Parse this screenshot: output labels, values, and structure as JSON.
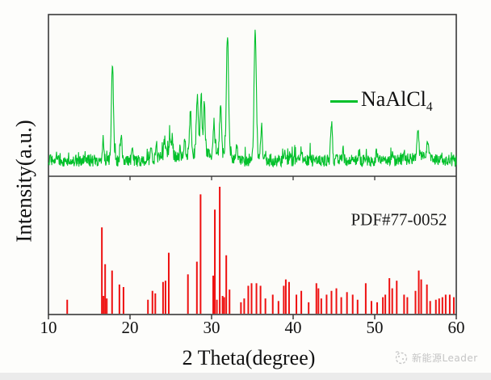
{
  "axes": {
    "xlabel": "2 Theta(degree)",
    "ylabel": "Intensity(a.u.)",
    "x_range": [
      10,
      60
    ],
    "x_ticks": [
      10,
      20,
      30,
      40,
      50,
      60
    ]
  },
  "legend": {
    "formula_base": "NaAlCl",
    "formula_sub": "4"
  },
  "reference_label": "PDF#77-0052",
  "watermark": {
    "text": "新能源Leader",
    "icon": "sun-logo-icon"
  },
  "colors": {
    "trace_green": "#00c02a",
    "reference_red": "#ee1010",
    "axis": "#3a3a3a",
    "plot_background": "#fcfcf9",
    "watermark_gray": "#c4c4c4",
    "footer_strip": "#ebebeb"
  },
  "chart_data": [
    {
      "type": "line",
      "panel": "top",
      "name": "NaAlCl4 experimental XRD trace",
      "xlabel": "2 Theta(degree)",
      "ylabel": "Intensity(a.u.)",
      "x_range": [
        10,
        60
      ],
      "grid": false,
      "legend_position": "upper right inside",
      "baseline_noise": {
        "base": -5,
        "amplitude": 9,
        "spike_chance": 0.08,
        "spike_amplitude": 8
      },
      "peaks_2theta_intensity_sigma": [
        [
          16.7,
          15,
          0.1
        ],
        [
          17.85,
          72,
          0.13
        ],
        [
          18.9,
          20,
          0.1
        ],
        [
          20.3,
          8,
          0.08
        ],
        [
          22.55,
          11,
          0.09
        ],
        [
          23.2,
          13,
          0.09
        ],
        [
          24.25,
          14,
          0.1
        ],
        [
          24.9,
          15,
          0.1
        ],
        [
          25.2,
          10,
          0.08
        ],
        [
          26.7,
          10,
          0.1
        ],
        [
          27.4,
          33,
          0.11
        ],
        [
          28.25,
          41,
          0.12
        ],
        [
          28.7,
          42,
          0.11
        ],
        [
          29.1,
          38,
          0.11
        ],
        [
          30.3,
          25,
          0.1
        ],
        [
          31.1,
          36,
          0.11
        ],
        [
          31.95,
          93,
          0.13
        ],
        [
          33.1,
          10,
          0.09
        ],
        [
          35.35,
          100,
          0.14
        ],
        [
          36.1,
          25,
          0.11
        ],
        [
          36.6,
          9,
          0.08
        ],
        [
          38.9,
          7,
          0.1
        ],
        [
          39.6,
          6,
          0.1
        ],
        [
          41.0,
          6,
          0.1
        ],
        [
          42.1,
          5,
          0.1
        ],
        [
          44.7,
          28,
          0.11
        ],
        [
          46.1,
          6,
          0.1
        ],
        [
          48.1,
          5,
          0.1
        ],
        [
          50.2,
          5,
          0.1
        ],
        [
          52.2,
          6,
          0.1
        ],
        [
          53.6,
          5,
          0.1
        ],
        [
          55.3,
          17,
          0.12
        ],
        [
          56.5,
          14,
          0.11
        ],
        [
          58.1,
          5,
          0.1
        ]
      ],
      "broad_humps_2theta_intensity_sigma": [
        [
          28.4,
          6,
          1.6
        ],
        [
          31.5,
          4,
          1.0
        ],
        [
          24.6,
          3,
          1.2
        ],
        [
          55.8,
          3,
          1.2
        ]
      ]
    },
    {
      "type": "bar",
      "panel": "bottom",
      "name": "PDF#77-0052 reference stick pattern",
      "x_range": [
        10,
        60
      ],
      "grid": false,
      "sticks_2theta_intensity": [
        [
          12.3,
          11
        ],
        [
          16.55,
          68
        ],
        [
          16.75,
          14
        ],
        [
          16.95,
          39
        ],
        [
          17.15,
          12
        ],
        [
          17.8,
          34
        ],
        [
          18.7,
          23
        ],
        [
          19.2,
          21
        ],
        [
          22.2,
          11
        ],
        [
          22.75,
          18
        ],
        [
          23.1,
          16
        ],
        [
          24.05,
          25
        ],
        [
          24.35,
          26
        ],
        [
          24.75,
          48
        ],
        [
          27.1,
          31
        ],
        [
          28.2,
          41
        ],
        [
          28.65,
          94
        ],
        [
          30.2,
          30
        ],
        [
          30.4,
          82
        ],
        [
          30.65,
          11
        ],
        [
          31.0,
          100
        ],
        [
          31.35,
          14
        ],
        [
          31.55,
          13
        ],
        [
          31.8,
          46
        ],
        [
          32.2,
          19
        ],
        [
          33.6,
          9
        ],
        [
          34.0,
          12
        ],
        [
          34.5,
          22
        ],
        [
          34.9,
          24
        ],
        [
          35.5,
          24
        ],
        [
          36.0,
          22
        ],
        [
          36.6,
          12
        ],
        [
          37.5,
          15
        ],
        [
          38.2,
          10
        ],
        [
          38.85,
          22
        ],
        [
          39.1,
          27
        ],
        [
          39.5,
          25
        ],
        [
          40.4,
          15
        ],
        [
          41.0,
          18
        ],
        [
          41.9,
          9
        ],
        [
          42.85,
          24
        ],
        [
          43.1,
          20
        ],
        [
          43.45,
          12
        ],
        [
          44.1,
          15
        ],
        [
          44.7,
          18
        ],
        [
          45.3,
          20
        ],
        [
          45.9,
          13
        ],
        [
          46.6,
          17
        ],
        [
          47.3,
          15
        ],
        [
          47.9,
          11
        ],
        [
          48.9,
          24
        ],
        [
          49.6,
          10
        ],
        [
          50.3,
          9
        ],
        [
          51.0,
          13
        ],
        [
          51.3,
          15
        ],
        [
          51.8,
          28
        ],
        [
          52.15,
          20
        ],
        [
          52.7,
          26
        ],
        [
          53.6,
          15
        ],
        [
          54.0,
          13
        ],
        [
          55.0,
          18
        ],
        [
          55.4,
          34
        ],
        [
          55.7,
          27
        ],
        [
          56.4,
          23
        ],
        [
          56.8,
          10
        ],
        [
          57.5,
          11
        ],
        [
          57.9,
          12
        ],
        [
          58.3,
          13
        ],
        [
          58.7,
          15
        ],
        [
          59.2,
          15
        ],
        [
          59.7,
          13
        ]
      ]
    }
  ]
}
